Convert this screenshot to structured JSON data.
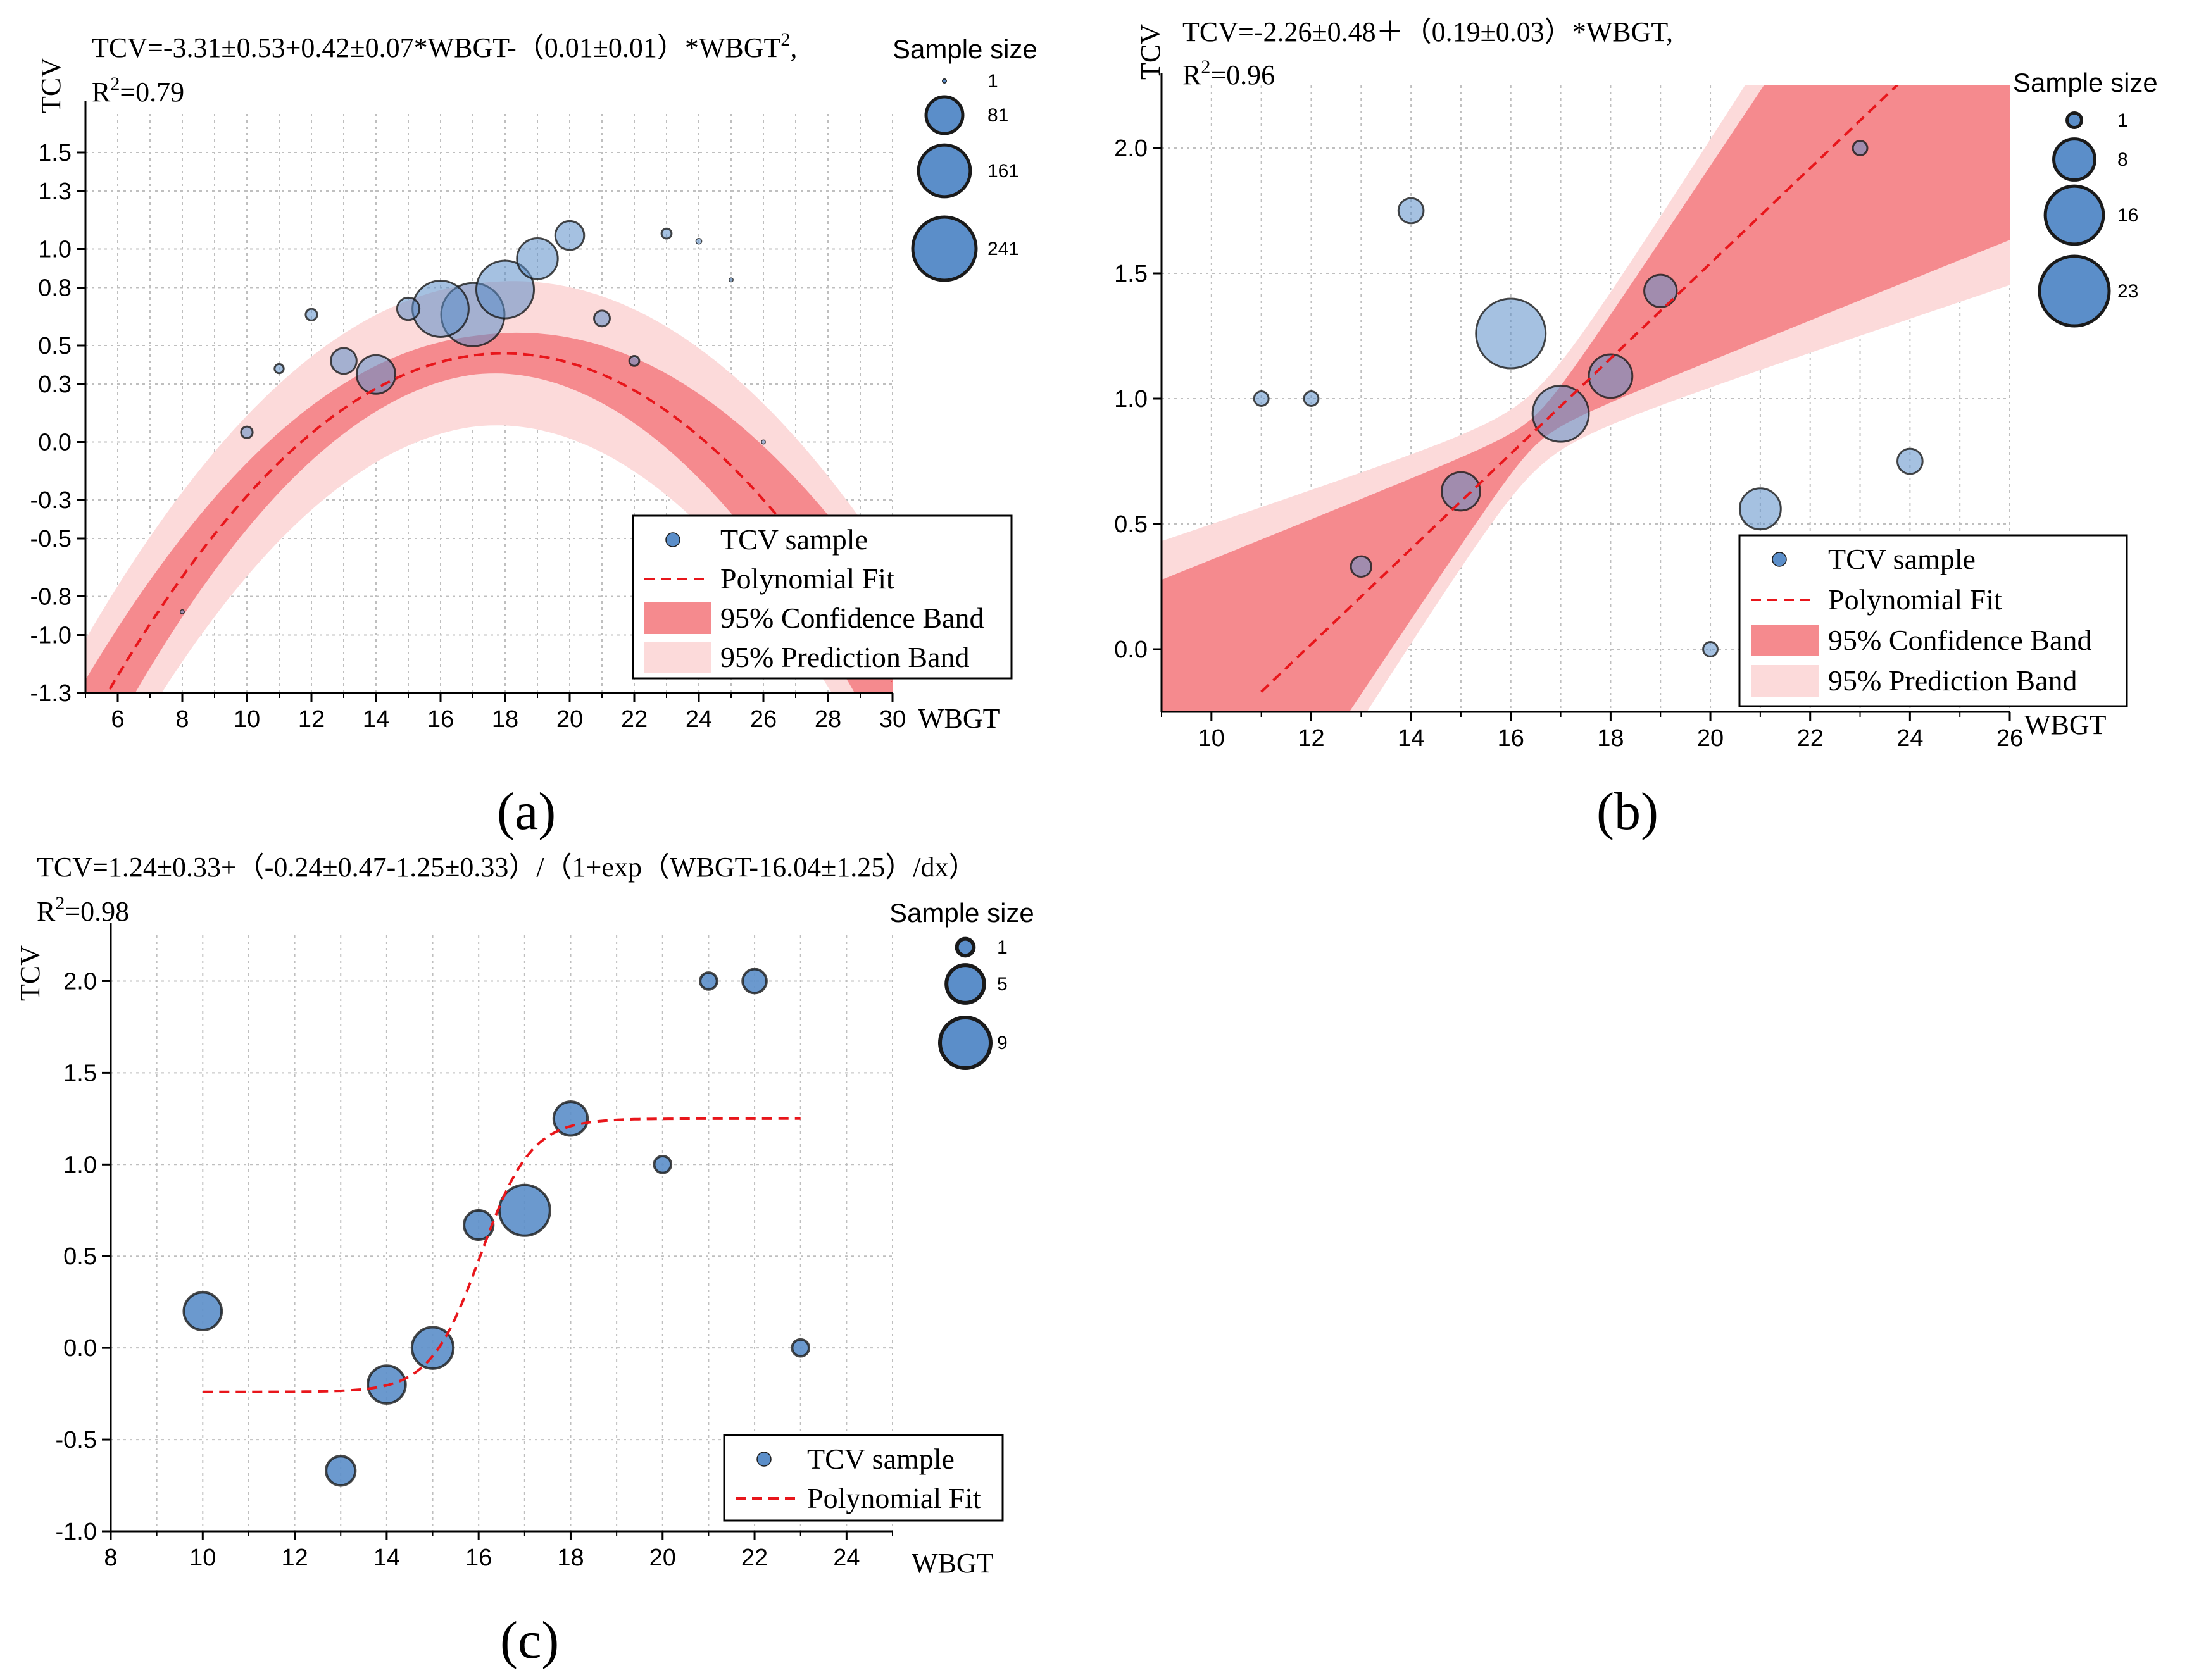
{
  "colors": {
    "point_fill": "#5b8ec9",
    "point_stroke": "#1a1a1a",
    "fit_line": "#e8161b",
    "confidence_band": "#f58a8e",
    "prediction_band": "#fcdada",
    "grid": "#bfbfbf"
  },
  "chart_data": [
    {
      "id": "a",
      "panel_label": "(a)",
      "type": "scatter",
      "equation": "TCV=-3.31±0.53+0.42±0.07*WBGT-（0.01±0.01）*WBGT",
      "equation_sup": "2",
      "equation_tail": ",",
      "r2_prefix": "R",
      "r2_sup": "2",
      "r2_value": "=0.79",
      "xlabel": "WBGT",
      "ylabel": "TCV",
      "xlim": [
        5,
        30
      ],
      "ylim": [
        -1.3,
        1.7
      ],
      "xticks": [
        6,
        8,
        10,
        12,
        14,
        16,
        18,
        20,
        22,
        24,
        26,
        28,
        30
      ],
      "yticks": [
        -1.3,
        -1.0,
        -0.8,
        -0.5,
        -0.3,
        0.0,
        0.3,
        0.5,
        0.8,
        1.0,
        1.3,
        1.5
      ],
      "ytick_labels": [
        "-1.3",
        "-1.0",
        "-0.8",
        "-0.5",
        "-0.3",
        "0.0",
        "0.3",
        "0.5",
        "0.8",
        "1.0",
        "1.3",
        "1.5"
      ],
      "fit": {
        "kind": "poly2",
        "b0": -3.31,
        "b1": 0.42,
        "b2": -0.0117,
        "xrange": [
          5,
          30
        ]
      },
      "confidence_band_halfwidth": [
        0.27,
        0.1,
        0.42
      ],
      "prediction_band_halfwidth": [
        0.48,
        0.37,
        0.6
      ],
      "points": [
        {
          "x": 8,
          "y": -0.88,
          "n": 1
        },
        {
          "x": 10,
          "y": 0.05,
          "n": 8
        },
        {
          "x": 11,
          "y": 0.38,
          "n": 5
        },
        {
          "x": 12,
          "y": 0.66,
          "n": 8
        },
        {
          "x": 13,
          "y": 0.42,
          "n": 40
        },
        {
          "x": 14,
          "y": 0.35,
          "n": 90
        },
        {
          "x": 15,
          "y": 0.69,
          "n": 30
        },
        {
          "x": 16,
          "y": 0.69,
          "n": 190
        },
        {
          "x": 17,
          "y": 0.66,
          "n": 241
        },
        {
          "x": 18,
          "y": 0.79,
          "n": 200
        },
        {
          "x": 19,
          "y": 0.95,
          "n": 100
        },
        {
          "x": 20,
          "y": 1.07,
          "n": 50
        },
        {
          "x": 21,
          "y": 0.64,
          "n": 15
        },
        {
          "x": 22,
          "y": 0.42,
          "n": 6
        },
        {
          "x": 23,
          "y": 1.08,
          "n": 6
        },
        {
          "x": 24,
          "y": 1.04,
          "n": 2
        },
        {
          "x": 25,
          "y": 0.84,
          "n": 1
        },
        {
          "x": 26,
          "y": 0.0,
          "n": 1
        }
      ],
      "size_legend": {
        "title": "Sample size",
        "items": [
          1,
          81,
          161,
          241
        ],
        "max": 241
      },
      "legend": {
        "sample": "TCV sample",
        "fit": "Polynomial Fit",
        "confidence": "95% Confidence Band",
        "prediction": "95% Prediction Band"
      }
    },
    {
      "id": "b",
      "panel_label": "(b)",
      "type": "scatter",
      "equation": "TCV=-2.26±0.48＋（0.19±0.03）*WBGT,",
      "r2_prefix": "R",
      "r2_sup": "2",
      "r2_value": "=0.96",
      "xlabel": "WBGT",
      "ylabel": "TCV",
      "xlim": [
        9,
        26
      ],
      "ylim": [
        -0.25,
        2.25
      ],
      "xticks": [
        10,
        12,
        14,
        16,
        18,
        20,
        22,
        24,
        26
      ],
      "yticks": [
        0.0,
        0.5,
        1.0,
        1.5,
        2.0
      ],
      "ytick_labels": [
        "0.0",
        "0.5",
        "1.0",
        "1.5",
        "2.0"
      ],
      "fit": {
        "kind": "linear",
        "b0": -2.26,
        "b1": 0.19,
        "xrange": [
          11,
          25
        ]
      },
      "confidence_band": {
        "center": 16.5,
        "min_halfwidth": 0.06,
        "slope": 0.11
      },
      "prediction_band": {
        "center": 16.5,
        "min_halfwidth": 0.11,
        "slope": 0.115
      },
      "points": [
        {
          "x": 11,
          "y": 1.0,
          "n": 1
        },
        {
          "x": 12,
          "y": 1.0,
          "n": 1
        },
        {
          "x": 13,
          "y": 0.33,
          "n": 2
        },
        {
          "x": 14,
          "y": 1.75,
          "n": 3
        },
        {
          "x": 15,
          "y": 0.63,
          "n": 7
        },
        {
          "x": 16,
          "y": 1.26,
          "n": 23
        },
        {
          "x": 17,
          "y": 0.94,
          "n": 15
        },
        {
          "x": 18,
          "y": 1.09,
          "n": 9
        },
        {
          "x": 19,
          "y": 1.43,
          "n": 5
        },
        {
          "x": 20,
          "y": 0.0,
          "n": 1
        },
        {
          "x": 21,
          "y": 0.56,
          "n": 8
        },
        {
          "x": 23,
          "y": 2.0,
          "n": 1
        },
        {
          "x": 24,
          "y": 0.75,
          "n": 3
        }
      ],
      "size_legend": {
        "title": "Sample size",
        "items": [
          1,
          8,
          16,
          23
        ],
        "max": 23
      },
      "legend": {
        "sample": "TCV sample",
        "fit": "Polynomial Fit",
        "confidence": "95% Confidence Band",
        "prediction": "95% Prediction Band"
      }
    },
    {
      "id": "c",
      "panel_label": "(c)",
      "type": "scatter",
      "equation": "TCV=1.24±0.33+（-0.24±0.47-1.25±0.33）/（1+exp（WBGT-16.04±1.25）/dx）",
      "r2_prefix": "R",
      "r2_sup": "2",
      "r2_value": "=0.98",
      "xlabel": "WBGT",
      "ylabel": "TCV",
      "xlim": [
        8,
        25
      ],
      "ylim": [
        -1.0,
        2.25
      ],
      "xticks": [
        8,
        10,
        12,
        14,
        16,
        18,
        20,
        22,
        24
      ],
      "yticks": [
        -1.0,
        -0.5,
        0.0,
        0.5,
        1.0,
        1.5,
        2.0
      ],
      "ytick_labels": [
        "-1.0",
        "-0.5",
        "0.0",
        "0.5",
        "1.0",
        "1.5",
        "2.0"
      ],
      "fit": {
        "kind": "sigmoid",
        "low": -0.24,
        "high": 1.25,
        "x0": 16.04,
        "dx": 0.55,
        "xrange": [
          10,
          23
        ]
      },
      "points": [
        {
          "x": 10,
          "y": 0.2,
          "n": 5
        },
        {
          "x": 13,
          "y": -0.67,
          "n": 3
        },
        {
          "x": 14,
          "y": -0.2,
          "n": 5
        },
        {
          "x": 15,
          "y": 0.0,
          "n": 6
        },
        {
          "x": 16,
          "y": 0.67,
          "n": 3
        },
        {
          "x": 17,
          "y": 0.75,
          "n": 9
        },
        {
          "x": 18,
          "y": 1.25,
          "n": 4
        },
        {
          "x": 20,
          "y": 1.0,
          "n": 1
        },
        {
          "x": 21,
          "y": 2.0,
          "n": 1
        },
        {
          "x": 22,
          "y": 2.0,
          "n": 2
        },
        {
          "x": 23,
          "y": 0.0,
          "n": 1
        }
      ],
      "size_legend": {
        "title": "Sample size",
        "items": [
          1,
          5,
          9
        ],
        "max": 9
      },
      "legend": {
        "sample": "TCV sample",
        "fit": "Polynomial Fit"
      }
    }
  ]
}
